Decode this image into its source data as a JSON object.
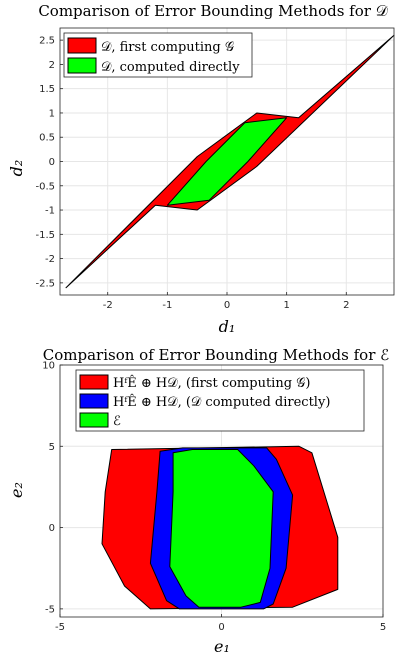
{
  "chart_data": [
    {
      "type": "area",
      "title": "Comparison of Error Bounding Methods for 𝒟",
      "xlabel": "d₁",
      "ylabel": "d₂",
      "xlim": [
        -2.8,
        2.8
      ],
      "ylim": [
        -2.75,
        2.75
      ],
      "xticks": [
        -2,
        -1,
        0,
        1,
        2
      ],
      "yticks": [
        -2.5,
        -2,
        -1.5,
        -1,
        -0.5,
        0,
        0.5,
        1,
        1.5,
        2,
        2.5
      ],
      "grid": true,
      "legend_position": "top-left",
      "series": [
        {
          "name": "𝒟, first computing 𝒢",
          "color": "#ff0000",
          "polygon": [
            [
              -2.7,
              -2.6
            ],
            [
              -0.5,
              0.1
            ],
            [
              0.5,
              1.0
            ],
            [
              1.2,
              0.9
            ],
            [
              2.8,
              2.6
            ],
            [
              0.5,
              -0.1
            ],
            [
              -0.5,
              -1.0
            ],
            [
              -1.2,
              -0.9
            ]
          ]
        },
        {
          "name": "𝒟, computed directly",
          "color": "#00ff00",
          "polygon": [
            [
              -1.0,
              -0.9
            ],
            [
              -0.35,
              0.0
            ],
            [
              0.3,
              0.8
            ],
            [
              1.0,
              0.9
            ],
            [
              0.35,
              0.0
            ],
            [
              -0.3,
              -0.8
            ]
          ]
        }
      ]
    },
    {
      "type": "area",
      "title": "Comparison of Error Bounding Methods for ℰ",
      "xlabel": "e₁",
      "ylabel": "e₂",
      "xlim": [
        -5,
        5
      ],
      "ylim": [
        -5.5,
        10
      ],
      "xticks": [
        -5,
        0,
        5
      ],
      "yticks": [
        -5,
        0,
        5,
        10
      ],
      "grid": true,
      "legend_position": "top",
      "series": [
        {
          "name": "HᶠÊ ⊕ H𝒟, (first computing 𝒢)",
          "color": "#ff0000",
          "polygon": [
            [
              -3.6,
              2.2
            ],
            [
              -3.4,
              4.8
            ],
            [
              2.4,
              5.0
            ],
            [
              2.8,
              4.6
            ],
            [
              3.6,
              -0.6
            ],
            [
              3.6,
              -3.8
            ],
            [
              2.2,
              -4.9
            ],
            [
              -2.2,
              -5.0
            ],
            [
              -3.0,
              -3.6
            ],
            [
              -3.7,
              -1.0
            ]
          ]
        },
        {
          "name": "HᶠÊ ⊕ H𝒟, (𝒟 computed directly)",
          "color": "#0000ff",
          "polygon": [
            [
              -2.0,
              2.2
            ],
            [
              -1.9,
              4.7
            ],
            [
              -1.2,
              4.9
            ],
            [
              1.4,
              4.9
            ],
            [
              1.7,
              4.2
            ],
            [
              2.2,
              2.0
            ],
            [
              2.0,
              -2.5
            ],
            [
              1.6,
              -4.7
            ],
            [
              1.3,
              -5.0
            ],
            [
              -1.3,
              -5.0
            ],
            [
              -1.7,
              -4.5
            ],
            [
              -2.2,
              -2.2
            ]
          ]
        },
        {
          "name": "ℰ",
          "color": "#00ff00",
          "polygon": [
            [
              -1.5,
              2.2
            ],
            [
              -1.5,
              4.6
            ],
            [
              -0.9,
              4.8
            ],
            [
              0.5,
              4.8
            ],
            [
              1.0,
              3.8
            ],
            [
              1.6,
              2.2
            ],
            [
              1.5,
              -2.5
            ],
            [
              1.2,
              -4.6
            ],
            [
              0.6,
              -4.9
            ],
            [
              -0.7,
              -4.9
            ],
            [
              -1.1,
              -4.2
            ],
            [
              -1.6,
              -2.4
            ]
          ]
        }
      ]
    }
  ]
}
